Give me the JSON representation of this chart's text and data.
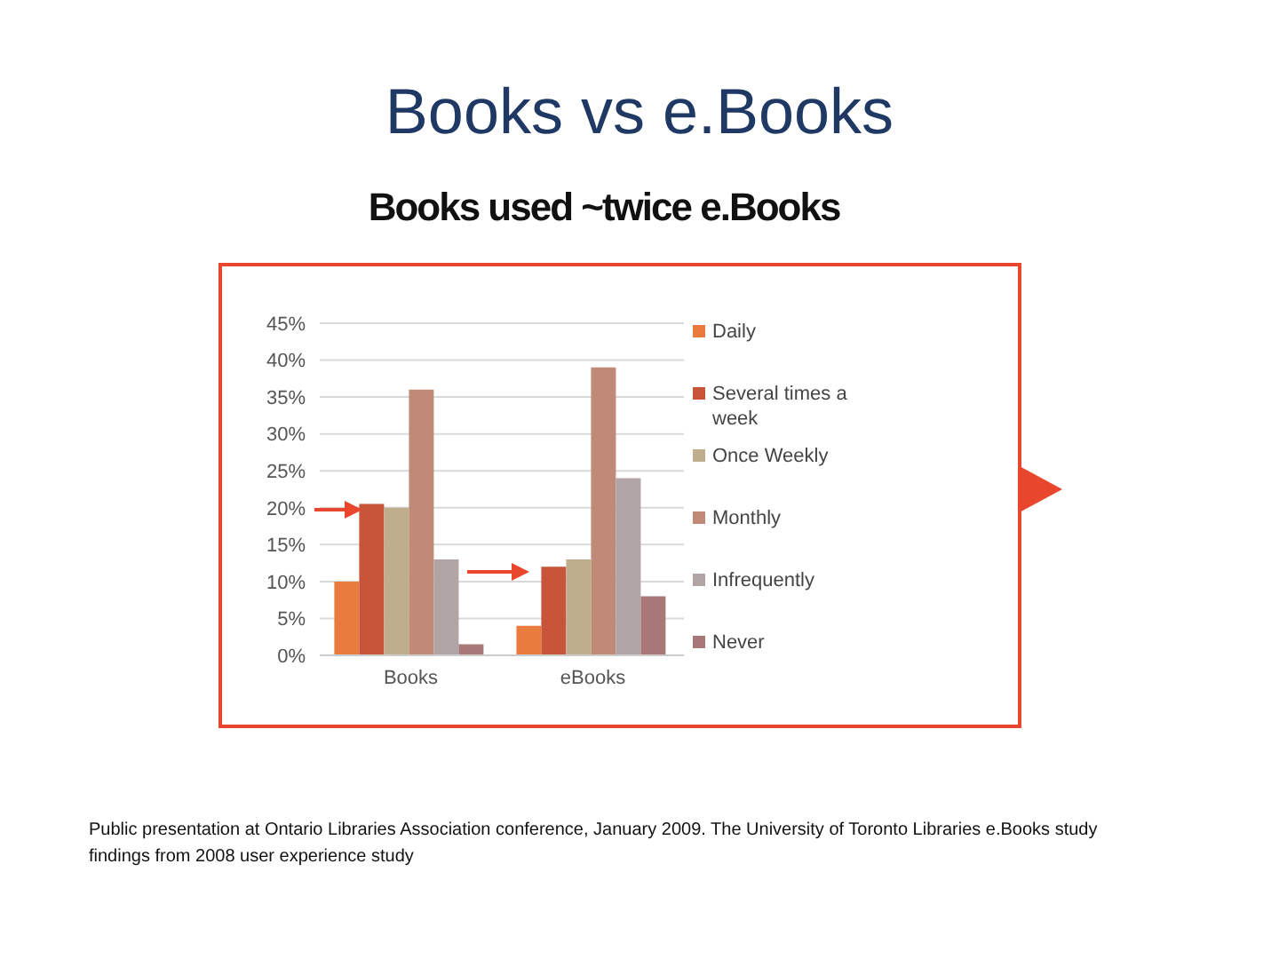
{
  "chart_data": {
    "type": "bar",
    "title": "Books vs e.Books",
    "subtitle": "Books used ~twice e.Books",
    "categories": [
      "Books",
      "eBooks"
    ],
    "series": [
      {
        "name": "Daily",
        "color": "#e97b3f",
        "values": [
          10,
          4
        ]
      },
      {
        "name": "Several times a week",
        "color": "#c8553a",
        "values": [
          20.5,
          12
        ]
      },
      {
        "name": "Once Weekly",
        "color": "#bfae8e",
        "values": [
          20,
          13
        ]
      },
      {
        "name": "Monthly",
        "color": "#c08a78",
        "values": [
          36,
          39
        ]
      },
      {
        "name": "Infrequently",
        "color": "#b0a4a4",
        "values": [
          13,
          24
        ]
      },
      {
        "name": "Never",
        "color": "#a87878",
        "values": [
          1.5,
          8
        ]
      }
    ],
    "ylim": [
      0,
      45
    ],
    "yticks": [
      {
        "value": 0,
        "label": "0%"
      },
      {
        "value": 5,
        "label": "5%"
      },
      {
        "value": 10,
        "label": "10%"
      },
      {
        "value": 15,
        "label": "15%"
      },
      {
        "value": 20,
        "label": "20%"
      },
      {
        "value": 25,
        "label": "25%"
      },
      {
        "value": 30,
        "label": "30%"
      },
      {
        "value": 35,
        "label": "35%"
      },
      {
        "value": 40,
        "label": "40%"
      },
      {
        "value": 45,
        "label": "45%"
      }
    ],
    "grid": "y",
    "legend": "right",
    "annotations": [
      "Public presentation at Ontario Libraries Association conference, January 2009. The University of Toronto Libraries e.Books study findings from 2008 user experience study"
    ]
  }
}
